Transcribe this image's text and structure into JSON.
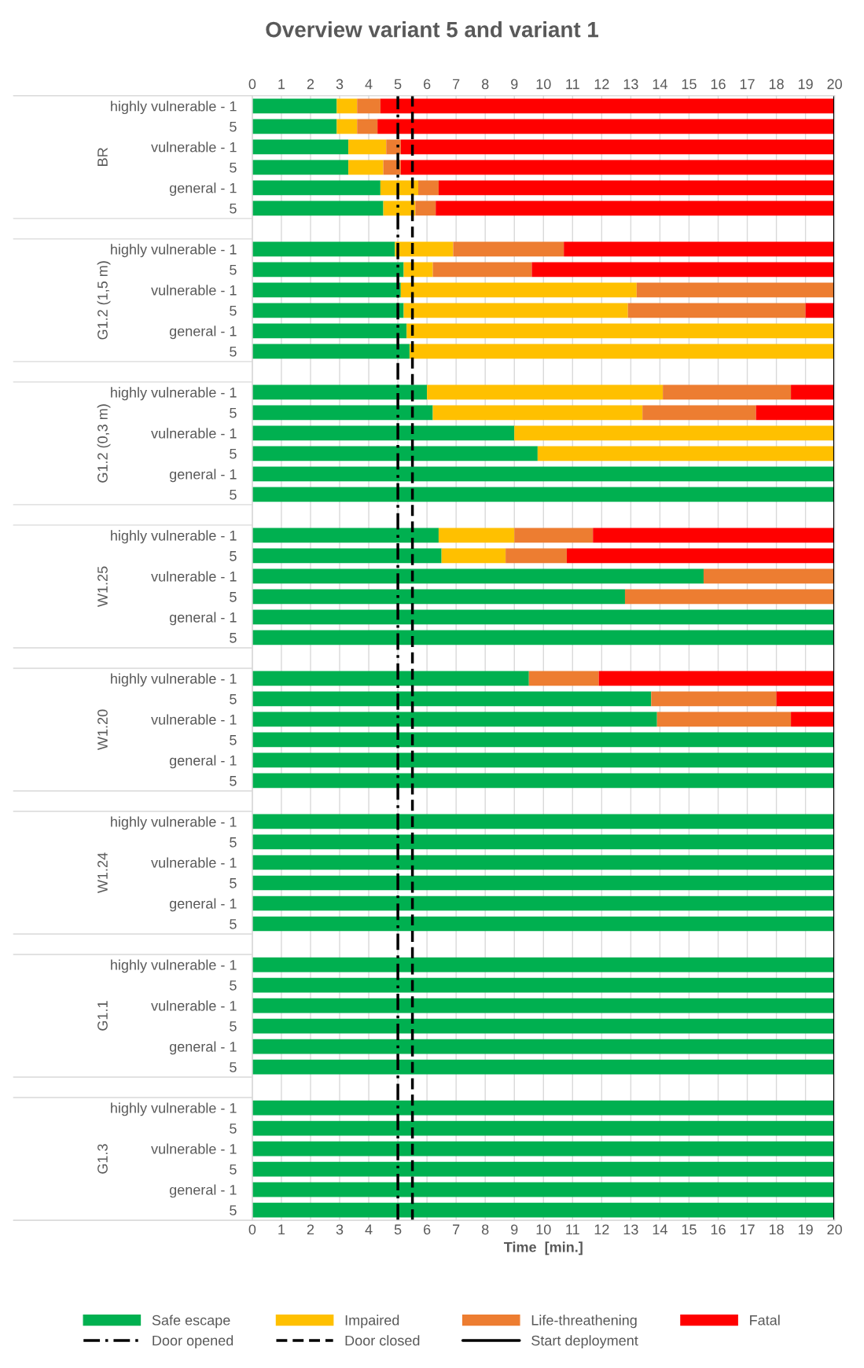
{
  "chart_data": {
    "type": "bar",
    "orientation": "horizontal",
    "stacked": true,
    "title": "Overview variant 5 and variant 1",
    "xlabel": "Time  [min.]",
    "categories": [
      "highly vulnerable - 1",
      "5",
      "vulnerable - 1",
      "5",
      "general - 1",
      "5",
      null,
      "highly vulnerable - 1",
      "5",
      "vulnerable - 1",
      "5",
      "general - 1",
      "5",
      null,
      "highly vulnerable - 1",
      "5",
      "vulnerable - 1",
      "5",
      "general - 1",
      "5",
      null,
      "highly vulnerable - 1",
      "5",
      "vulnerable - 1",
      "5",
      "general - 1",
      "5",
      null,
      "highly vulnerable - 1",
      "5",
      "vulnerable - 1",
      "5",
      "general - 1",
      "5",
      null,
      "highly vulnerable - 1",
      "5",
      "vulnerable - 1",
      "5",
      "general - 1",
      "5",
      null,
      "highly vulnerable - 1",
      "5",
      "vulnerable - 1",
      "5",
      "general - 1",
      "5",
      null,
      "highly vulnerable - 1",
      "5",
      "vulnerable - 1",
      "5",
      "general - 1",
      "5"
    ],
    "annotations": [
      "BR",
      "G1.2 (1,5 m)",
      "G1.2 (0,3 m)",
      "W1.25",
      "W1.20",
      "W1.24",
      "G1.1",
      "G1.3"
    ],
    "series": [
      {
        "name": "Safe escape",
        "color": "#00b050",
        "values": [
          2.9,
          2.9,
          3.3,
          3.3,
          4.4,
          4.5,
          null,
          4.9,
          5.2,
          5.1,
          5.2,
          5.3,
          5.4,
          null,
          6.0,
          6.2,
          9.0,
          9.8,
          20,
          20,
          null,
          6.4,
          6.5,
          15.5,
          12.8,
          20,
          20,
          null,
          9.5,
          13.7,
          13.9,
          20,
          20,
          20,
          null,
          20,
          20,
          20,
          20,
          20,
          20,
          null,
          20,
          20,
          20,
          20,
          20,
          20,
          null,
          20,
          20,
          20,
          20,
          20,
          20
        ]
      },
      {
        "name": "Impaired",
        "color": "#ffc000",
        "values": [
          0.7,
          0.7,
          1.3,
          1.2,
          1.3,
          1.1,
          null,
          2.0,
          1.0,
          8.1,
          7.7,
          14.7,
          14.6,
          null,
          8.1,
          7.2,
          11.0,
          10.2,
          0,
          0,
          null,
          2.6,
          2.2,
          0,
          0,
          0,
          0,
          null,
          0,
          0,
          0,
          0,
          0,
          0,
          null,
          0,
          0,
          0,
          0,
          0,
          0,
          null,
          0,
          0,
          0,
          0,
          0,
          0,
          null,
          0,
          0,
          0,
          0,
          0,
          0
        ]
      },
      {
        "name": "Life-threathening",
        "color": "#ed7d31",
        "values": [
          0.8,
          0.7,
          0.5,
          0.6,
          0.7,
          0.7,
          null,
          3.8,
          3.4,
          6.8,
          6.1,
          0,
          0,
          null,
          4.4,
          3.9,
          0,
          0,
          0,
          0,
          null,
          2.7,
          2.1,
          4.5,
          7.2,
          0,
          0,
          null,
          2.4,
          4.3,
          4.6,
          0,
          0,
          0,
          null,
          0,
          0,
          0,
          0,
          0,
          0,
          null,
          0,
          0,
          0,
          0,
          0,
          0,
          null,
          0,
          0,
          0,
          0,
          0,
          0
        ]
      },
      {
        "name": "Fatal",
        "color": "#ff0000",
        "values": [
          15.6,
          15.7,
          14.9,
          14.9,
          13.6,
          13.7,
          null,
          9.3,
          10.4,
          0,
          1.0,
          0,
          0,
          null,
          1.5,
          2.7,
          0,
          0,
          0,
          0,
          null,
          8.3,
          9.2,
          0,
          0,
          0,
          0,
          null,
          8.1,
          2.0,
          1.5,
          0,
          0,
          0,
          null,
          0,
          0,
          0,
          0,
          0,
          0,
          null,
          0,
          0,
          0,
          0,
          0,
          0,
          null,
          0,
          0,
          0,
          0,
          0,
          0
        ]
      }
    ],
    "ref_lines": [
      {
        "axis": "x",
        "value": 5,
        "label": "Door opened",
        "color": "#000000",
        "line_style": "dashdot"
      },
      {
        "axis": "x",
        "value": 5.5,
        "label": "Door closed",
        "color": "#000000",
        "line_style": "dashed"
      },
      {
        "axis": "x",
        "value": 20,
        "label": "Start deployment",
        "color": "#000000",
        "line_style": "solid"
      }
    ],
    "xlim": [
      0,
      20
    ],
    "xticks": [
      0,
      1,
      2,
      3,
      4,
      5,
      6,
      7,
      8,
      9,
      10,
      11,
      12,
      13,
      14,
      15,
      16,
      17,
      18,
      19,
      20
    ],
    "x2lim": [
      0,
      20
    ],
    "x2ticks": [
      0,
      1,
      2,
      3,
      4,
      5,
      6,
      7,
      8,
      9,
      10,
      11,
      12,
      13,
      14,
      15,
      16,
      17,
      18,
      19,
      20
    ],
    "grid": "x",
    "legend": "bottom"
  }
}
